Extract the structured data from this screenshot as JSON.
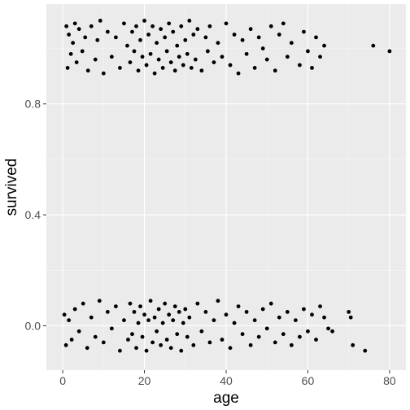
{
  "chart_data": {
    "type": "scatter",
    "title": "",
    "xlabel": "age",
    "ylabel": "survived",
    "xlim": [
      -4,
      84
    ],
    "ylim": [
      -0.16,
      1.16
    ],
    "x_ticks": [
      0,
      20,
      40,
      60,
      80
    ],
    "x_tick_labels": [
      "0",
      "20",
      "40",
      "60",
      "80"
    ],
    "y_ticks": [
      0.0,
      0.4,
      0.8
    ],
    "y_tick_labels": [
      "0.0",
      "0.4",
      "0.8"
    ],
    "grid": true,
    "legend": "none",
    "jitter": "points jittered vertically about survived = 0 and survived = 1 (spread about ±0.1)",
    "points_survived_1": [
      [
        0.9,
        1.08
      ],
      [
        1.2,
        0.93
      ],
      [
        1.5,
        1.05
      ],
      [
        2.0,
        0.98
      ],
      [
        2.5,
        1.02
      ],
      [
        3.0,
        1.09
      ],
      [
        3.4,
        0.95
      ],
      [
        4.0,
        1.07
      ],
      [
        4.8,
        0.99
      ],
      [
        5.5,
        1.04
      ],
      [
        6.2,
        0.92
      ],
      [
        7.0,
        1.08
      ],
      [
        8.0,
        0.96
      ],
      [
        8.5,
        1.03
      ],
      [
        9.2,
        1.1
      ],
      [
        10.0,
        0.91
      ],
      [
        11.0,
        1.06
      ],
      [
        12.0,
        0.97
      ],
      [
        13.0,
        1.04
      ],
      [
        14.0,
        0.93
      ],
      [
        15.0,
        1.09
      ],
      [
        15.8,
        1.01
      ],
      [
        16.5,
        0.95
      ],
      [
        17.0,
        1.06
      ],
      [
        17.5,
        0.99
      ],
      [
        18.0,
        1.08
      ],
      [
        18.5,
        0.92
      ],
      [
        19.0,
        1.03
      ],
      [
        19.5,
        0.97
      ],
      [
        20.0,
        1.1
      ],
      [
        20.5,
        0.94
      ],
      [
        21.0,
        1.05
      ],
      [
        21.5,
        0.98
      ],
      [
        22.0,
        1.08
      ],
      [
        22.5,
        0.91
      ],
      [
        23.0,
        1.02
      ],
      [
        23.5,
        0.96
      ],
      [
        24.0,
        1.07
      ],
      [
        24.5,
        0.93
      ],
      [
        25.0,
        1.04
      ],
      [
        25.5,
        0.99
      ],
      [
        26.0,
        1.09
      ],
      [
        26.5,
        0.95
      ],
      [
        27.0,
        1.06
      ],
      [
        27.5,
        0.92
      ],
      [
        28.0,
        1.01
      ],
      [
        28.5,
        0.97
      ],
      [
        29.0,
        1.08
      ],
      [
        29.5,
        0.94
      ],
      [
        30.0,
        1.03
      ],
      [
        30.5,
        0.98
      ],
      [
        31.0,
        1.1
      ],
      [
        31.5,
        0.93
      ],
      [
        32.0,
        1.05
      ],
      [
        32.5,
        0.96
      ],
      [
        33.0,
        1.07
      ],
      [
        34.0,
        0.92
      ],
      [
        35.0,
        1.04
      ],
      [
        35.5,
        0.99
      ],
      [
        36.0,
        1.08
      ],
      [
        37.0,
        0.95
      ],
      [
        38.0,
        1.02
      ],
      [
        39.0,
        0.97
      ],
      [
        40.0,
        1.09
      ],
      [
        41.0,
        0.94
      ],
      [
        42.0,
        1.05
      ],
      [
        43.0,
        0.91
      ],
      [
        44.0,
        1.03
      ],
      [
        45.0,
        0.98
      ],
      [
        46.0,
        1.07
      ],
      [
        47.0,
        0.93
      ],
      [
        48.0,
        1.04
      ],
      [
        49.0,
        1.0
      ],
      [
        50.0,
        0.96
      ],
      [
        51.0,
        1.08
      ],
      [
        52.0,
        0.92
      ],
      [
        53.0,
        1.05
      ],
      [
        54.0,
        1.09
      ],
      [
        55.0,
        0.97
      ],
      [
        56.0,
        1.02
      ],
      [
        58.0,
        0.94
      ],
      [
        59.0,
        1.06
      ],
      [
        60.0,
        0.99
      ],
      [
        61.0,
        0.93
      ],
      [
        62.0,
        1.04
      ],
      [
        63.0,
        0.97
      ],
      [
        64.0,
        1.01
      ],
      [
        76.0,
        1.01
      ],
      [
        80.0,
        0.99
      ]
    ],
    "points_survived_0": [
      [
        0.4,
        0.04
      ],
      [
        0.8,
        -0.07
      ],
      [
        1.5,
        0.02
      ],
      [
        2.2,
        -0.05
      ],
      [
        3.0,
        0.06
      ],
      [
        4.0,
        -0.02
      ],
      [
        5.0,
        0.08
      ],
      [
        6.0,
        -0.08
      ],
      [
        7.0,
        0.03
      ],
      [
        8.0,
        -0.04
      ],
      [
        9.0,
        0.09
      ],
      [
        10.0,
        -0.06
      ],
      [
        11.0,
        0.05
      ],
      [
        12.0,
        -0.01
      ],
      [
        13.0,
        0.07
      ],
      [
        14.0,
        -0.09
      ],
      [
        15.0,
        0.02
      ],
      [
        16.0,
        -0.05
      ],
      [
        16.5,
        0.08
      ],
      [
        17.0,
        -0.03
      ],
      [
        17.5,
        0.05
      ],
      [
        18.0,
        -0.08
      ],
      [
        18.5,
        0.01
      ],
      [
        19.0,
        0.07
      ],
      [
        19.5,
        -0.04
      ],
      [
        20.0,
        0.04
      ],
      [
        20.5,
        -0.09
      ],
      [
        21.0,
        0.02
      ],
      [
        21.5,
        0.09
      ],
      [
        22.0,
        -0.06
      ],
      [
        22.5,
        0.03
      ],
      [
        23.0,
        -0.02
      ],
      [
        23.5,
        0.06
      ],
      [
        24.0,
        -0.07
      ],
      [
        24.5,
        0.01
      ],
      [
        25.0,
        0.08
      ],
      [
        25.5,
        -0.05
      ],
      [
        26.0,
        0.04
      ],
      [
        26.5,
        -0.08
      ],
      [
        27.0,
        0.02
      ],
      [
        27.5,
        0.07
      ],
      [
        28.0,
        -0.03
      ],
      [
        28.5,
        0.05
      ],
      [
        29.0,
        -0.09
      ],
      [
        29.5,
        0.01
      ],
      [
        30.0,
        0.06
      ],
      [
        30.5,
        -0.04
      ],
      [
        31.0,
        0.03
      ],
      [
        32.0,
        -0.07
      ],
      [
        33.0,
        0.08
      ],
      [
        34.0,
        -0.02
      ],
      [
        35.0,
        0.05
      ],
      [
        36.0,
        -0.06
      ],
      [
        37.0,
        0.02
      ],
      [
        38.0,
        0.09
      ],
      [
        39.0,
        -0.05
      ],
      [
        40.0,
        0.04
      ],
      [
        41.0,
        -0.08
      ],
      [
        42.0,
        0.01
      ],
      [
        43.0,
        0.07
      ],
      [
        44.0,
        -0.03
      ],
      [
        45.0,
        0.05
      ],
      [
        46.0,
        -0.07
      ],
      [
        47.0,
        0.02
      ],
      [
        48.0,
        -0.04
      ],
      [
        49.0,
        0.06
      ],
      [
        50.0,
        -0.01
      ],
      [
        51.0,
        0.08
      ],
      [
        52.0,
        -0.06
      ],
      [
        53.0,
        0.03
      ],
      [
        54.0,
        -0.03
      ],
      [
        55.0,
        0.05
      ],
      [
        56.0,
        -0.07
      ],
      [
        57.0,
        0.02
      ],
      [
        58.0,
        -0.04
      ],
      [
        59.0,
        0.06
      ],
      [
        60.0,
        -0.02
      ],
      [
        61.0,
        0.04
      ],
      [
        62.0,
        -0.05
      ],
      [
        63.0,
        0.07
      ],
      [
        64.0,
        0.03
      ],
      [
        65.0,
        -0.01
      ],
      [
        66.0,
        -0.02
      ],
      [
        70.0,
        0.05
      ],
      [
        70.5,
        0.03
      ],
      [
        71.0,
        -0.07
      ],
      [
        74.0,
        -0.09
      ]
    ]
  }
}
